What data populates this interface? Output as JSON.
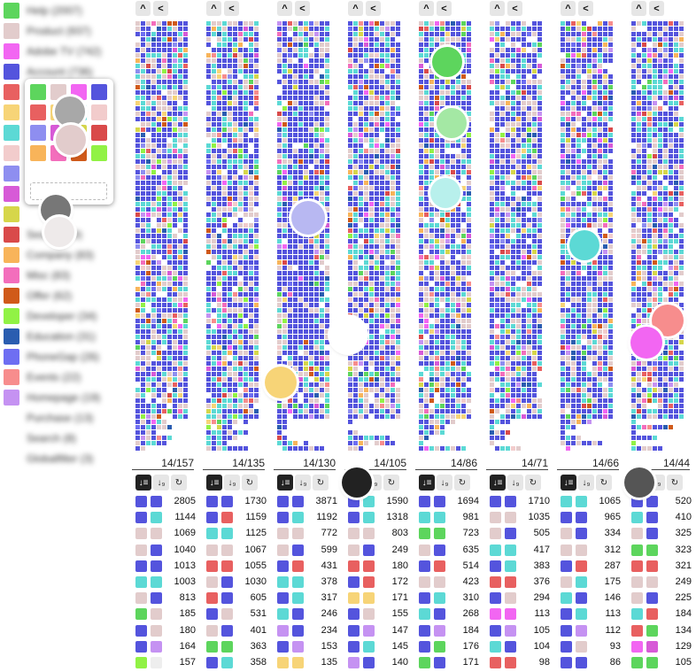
{
  "legend": [
    {
      "label": "Help (2007)",
      "color": "#5dd55d"
    },
    {
      "label": "Product (937)",
      "color": "#e2cccc"
    },
    {
      "label": "Adobe TV (742)",
      "color": "#f266f2"
    },
    {
      "label": "Account (736)",
      "color": "#5454dd"
    },
    {
      "label": "",
      "color": "#e86060"
    },
    {
      "label": "",
      "color": "#f7d477"
    },
    {
      "label": "",
      "color": "#5cd9d5"
    },
    {
      "label": "",
      "color": "#f2cccc"
    },
    {
      "label": "",
      "color": "#8e8ef0"
    },
    {
      "label": "",
      "color": "#d75ad7"
    },
    {
      "label": "",
      "color": "#d6d64a"
    },
    {
      "label": "Search (89)",
      "color": "#d94a4a"
    },
    {
      "label": "Company (83)",
      "color": "#f8b45a"
    },
    {
      "label": "Misc (83)",
      "color": "#f36ebc"
    },
    {
      "label": "Offer (62)",
      "color": "#d05a1a"
    },
    {
      "label": "Developer (34)",
      "color": "#91f245"
    },
    {
      "label": "Education (31)",
      "color": "#2a5db0"
    },
    {
      "label": "PhoneGap (26)",
      "color": "#6e6ef2"
    },
    {
      "label": "Events (22)",
      "color": "#f78d8d"
    },
    {
      "label": "Homepage (19)",
      "color": "#c592f2"
    },
    {
      "label": "Purchase (13)",
      "color": ""
    },
    {
      "label": "Search (8)",
      "color": ""
    },
    {
      "label": "Globalfilter (3)",
      "color": ""
    }
  ],
  "palette": [
    "#5dd55d",
    "#e2cccc",
    "#f266f2",
    "#5454dd",
    "#e86060",
    "#f7d477",
    "#5cd9d5",
    "#f2cccc",
    "#8e8ef0",
    "#d75ad7",
    "#d6d64a",
    "#d94a4a",
    "#f8b45a",
    "#f36ebc",
    "#d05a1a",
    "#91f245",
    "#2a5db0",
    "#6e6ef2",
    "#f78d8d",
    "#c592f2"
  ],
  "buttons": {
    "collapse": "^",
    "back": "<",
    "sort_desc": "↓≡",
    "sort_num": "↓₉",
    "refresh": "↻"
  },
  "columns": [
    {
      "label": "14/157",
      "rows": [
        {
          "a": "#5454dd",
          "b": "#5454dd",
          "n": "2805"
        },
        {
          "a": "#5454dd",
          "b": "#5cd9d5",
          "n": "1144"
        },
        {
          "a": "#e2cccc",
          "b": "#e2cccc",
          "n": "1069"
        },
        {
          "a": "#e2cccc",
          "b": "#5454dd",
          "n": "1040"
        },
        {
          "a": "#5454dd",
          "b": "#5454dd",
          "n": "1013"
        },
        {
          "a": "#5cd9d5",
          "b": "#5cd9d5",
          "n": "1003"
        },
        {
          "a": "#e2cccc",
          "b": "#5454dd",
          "n": "813"
        },
        {
          "a": "#5dd55d",
          "b": "#e2cccc",
          "n": "185"
        },
        {
          "a": "#5454dd",
          "b": "#e2cccc",
          "n": "180"
        },
        {
          "a": "#5454dd",
          "b": "#c592f2",
          "n": "164"
        },
        {
          "a": "#91f245",
          "b": "#eeeeee",
          "n": "157"
        }
      ]
    },
    {
      "label": "14/135",
      "rows": [
        {
          "a": "#5454dd",
          "b": "#5454dd",
          "n": "1730"
        },
        {
          "a": "#5454dd",
          "b": "#e86060",
          "n": "1159"
        },
        {
          "a": "#5cd9d5",
          "b": "#5cd9d5",
          "n": "1125"
        },
        {
          "a": "#e2cccc",
          "b": "#e2cccc",
          "n": "1067"
        },
        {
          "a": "#e86060",
          "b": "#e86060",
          "n": "1055"
        },
        {
          "a": "#e2cccc",
          "b": "#5454dd",
          "n": "1030"
        },
        {
          "a": "#e86060",
          "b": "#5454dd",
          "n": "605"
        },
        {
          "a": "#5454dd",
          "b": "#e2cccc",
          "n": "531"
        },
        {
          "a": "#e2cccc",
          "b": "#5454dd",
          "n": "401"
        },
        {
          "a": "#5dd55d",
          "b": "#5dd55d",
          "n": "363"
        },
        {
          "a": "#5454dd",
          "b": "#5cd9d5",
          "n": "358"
        }
      ]
    },
    {
      "label": "14/130",
      "rows": [
        {
          "a": "#5454dd",
          "b": "#5454dd",
          "n": "3871"
        },
        {
          "a": "#5454dd",
          "b": "#5cd9d5",
          "n": "1192"
        },
        {
          "a": "#e2cccc",
          "b": "#e2cccc",
          "n": "772"
        },
        {
          "a": "#e2cccc",
          "b": "#5454dd",
          "n": "599"
        },
        {
          "a": "#5454dd",
          "b": "#e86060",
          "n": "431"
        },
        {
          "a": "#5cd9d5",
          "b": "#5cd9d5",
          "n": "378"
        },
        {
          "a": "#5454dd",
          "b": "#5cd9d5",
          "n": "317"
        },
        {
          "a": "#5cd9d5",
          "b": "#5454dd",
          "n": "246"
        },
        {
          "a": "#c592f2",
          "b": "#5454dd",
          "n": "234"
        },
        {
          "a": "#5454dd",
          "b": "#c592f2",
          "n": "153"
        },
        {
          "a": "#f7d477",
          "b": "#f7d477",
          "n": "135"
        }
      ]
    },
    {
      "label": "14/105",
      "rows": [
        {
          "a": "#5454dd",
          "b": "#5cd9d5",
          "n": "1590"
        },
        {
          "a": "#5454dd",
          "b": "#5cd9d5",
          "n": "1318"
        },
        {
          "a": "#e2cccc",
          "b": "#e2cccc",
          "n": "803"
        },
        {
          "a": "#e2cccc",
          "b": "#5454dd",
          "n": "249"
        },
        {
          "a": "#e86060",
          "b": "#e86060",
          "n": "180"
        },
        {
          "a": "#5454dd",
          "b": "#e86060",
          "n": "172"
        },
        {
          "a": "#f7d477",
          "b": "#f7d477",
          "n": "171"
        },
        {
          "a": "#5454dd",
          "b": "#e2cccc",
          "n": "155"
        },
        {
          "a": "#5454dd",
          "b": "#c592f2",
          "n": "147"
        },
        {
          "a": "#5454dd",
          "b": "#5cd9d5",
          "n": "145"
        },
        {
          "a": "#c592f2",
          "b": "#5454dd",
          "n": "140"
        }
      ]
    },
    {
      "label": "14/86",
      "rows": [
        {
          "a": "#5454dd",
          "b": "#5454dd",
          "n": "1694"
        },
        {
          "a": "#5cd9d5",
          "b": "#5cd9d5",
          "n": "981"
        },
        {
          "a": "#5dd55d",
          "b": "#5dd55d",
          "n": "723"
        },
        {
          "a": "#e2cccc",
          "b": "#5454dd",
          "n": "635"
        },
        {
          "a": "#5454dd",
          "b": "#e86060",
          "n": "514"
        },
        {
          "a": "#e2cccc",
          "b": "#e2cccc",
          "n": "423"
        },
        {
          "a": "#5454dd",
          "b": "#5cd9d5",
          "n": "310"
        },
        {
          "a": "#5cd9d5",
          "b": "#5454dd",
          "n": "268"
        },
        {
          "a": "#5454dd",
          "b": "#c592f2",
          "n": "184"
        },
        {
          "a": "#5454dd",
          "b": "#5dd55d",
          "n": "176"
        },
        {
          "a": "#5dd55d",
          "b": "#5454dd",
          "n": "171"
        }
      ]
    },
    {
      "label": "14/71",
      "rows": [
        {
          "a": "#5454dd",
          "b": "#5454dd",
          "n": "1710"
        },
        {
          "a": "#e2cccc",
          "b": "#e2cccc",
          "n": "1035"
        },
        {
          "a": "#e2cccc",
          "b": "#5454dd",
          "n": "505"
        },
        {
          "a": "#5cd9d5",
          "b": "#5cd9d5",
          "n": "417"
        },
        {
          "a": "#5454dd",
          "b": "#5cd9d5",
          "n": "383"
        },
        {
          "a": "#e86060",
          "b": "#e86060",
          "n": "376"
        },
        {
          "a": "#5454dd",
          "b": "#e2cccc",
          "n": "294"
        },
        {
          "a": "#f266f2",
          "b": "#f266f2",
          "n": "113"
        },
        {
          "a": "#5454dd",
          "b": "#c592f2",
          "n": "105"
        },
        {
          "a": "#5cd9d5",
          "b": "#5454dd",
          "n": "104"
        },
        {
          "a": "#e86060",
          "b": "#e86060",
          "n": "98"
        }
      ]
    },
    {
      "label": "14/66",
      "rows": [
        {
          "a": "#5cd9d5",
          "b": "#5cd9d5",
          "n": "1065"
        },
        {
          "a": "#5454dd",
          "b": "#5454dd",
          "n": "965"
        },
        {
          "a": "#e2cccc",
          "b": "#5454dd",
          "n": "334"
        },
        {
          "a": "#e2cccc",
          "b": "#e2cccc",
          "n": "312"
        },
        {
          "a": "#5454dd",
          "b": "#e86060",
          "n": "287"
        },
        {
          "a": "#e2cccc",
          "b": "#5cd9d5",
          "n": "175"
        },
        {
          "a": "#5cd9d5",
          "b": "#5454dd",
          "n": "146"
        },
        {
          "a": "#5454dd",
          "b": "#5cd9d5",
          "n": "113"
        },
        {
          "a": "#5454dd",
          "b": "#c592f2",
          "n": "112"
        },
        {
          "a": "#5454dd",
          "b": "#e2cccc",
          "n": "93"
        },
        {
          "a": "#5454dd",
          "b": "#5454dd",
          "n": "86"
        }
      ]
    },
    {
      "label": "14/44",
      "rows": [
        {
          "a": "#5454dd",
          "b": "#5454dd",
          "n": "520"
        },
        {
          "a": "#5cd9d5",
          "b": "#5454dd",
          "n": "410"
        },
        {
          "a": "#e2cccc",
          "b": "#5454dd",
          "n": "325"
        },
        {
          "a": "#5dd55d",
          "b": "#5dd55d",
          "n": "323"
        },
        {
          "a": "#e86060",
          "b": "#e86060",
          "n": "321"
        },
        {
          "a": "#e2cccc",
          "b": "#e2cccc",
          "n": "249"
        },
        {
          "a": "#e2cccc",
          "b": "#5454dd",
          "n": "225"
        },
        {
          "a": "#5cd9d5",
          "b": "#e86060",
          "n": "184"
        },
        {
          "a": "#e86060",
          "b": "#5dd55d",
          "n": "134"
        },
        {
          "a": "#f266f2",
          "b": "#d75ad7",
          "n": "129"
        },
        {
          "a": "#5dd55d",
          "b": "#5dd55d",
          "n": "105"
        }
      ]
    }
  ],
  "touch_colors": [
    "#5dd55d",
    "#a4e8a4",
    "#b8f0ec",
    "#5cd9d5",
    "#b8b8f2",
    "#f7d477",
    "#ffffff",
    "#f78d8d",
    "#f266f2",
    "#222222",
    "#555555",
    "#777777",
    "#a8a8a8",
    "#e2cccc"
  ]
}
